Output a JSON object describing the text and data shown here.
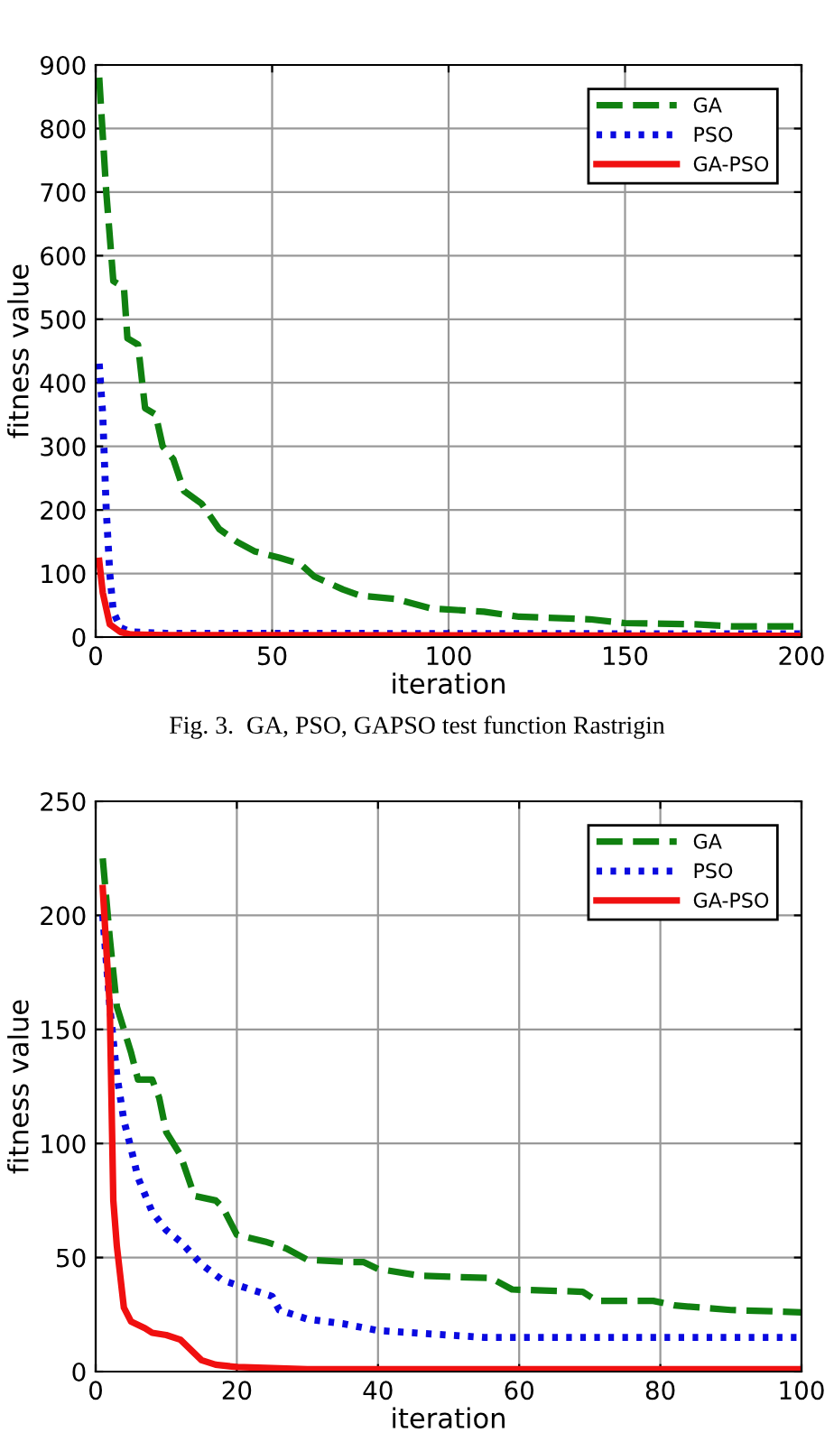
{
  "chart_data": [
    {
      "type": "line",
      "xlabel": "iteration",
      "ylabel": "fitness value",
      "xlim": [
        0,
        200
      ],
      "ylim": [
        0,
        900
      ],
      "xticks": [
        0,
        50,
        100,
        150,
        200
      ],
      "yticks": [
        0,
        100,
        200,
        300,
        400,
        500,
        600,
        700,
        800,
        900
      ],
      "grid": true,
      "legend": "top right",
      "annotations": [
        "Fig. 3.  GA, PSO, GAPSO test function Rastrigin"
      ],
      "series": [
        {
          "name": "GA",
          "color": "#108010",
          "line_style": "dashed",
          "x": [
            1,
            3,
            5,
            8,
            9,
            12,
            14,
            17,
            19,
            22,
            25,
            30,
            35,
            40,
            45,
            52,
            58,
            62,
            70,
            75,
            85,
            95,
            110,
            120,
            140,
            150,
            170,
            180,
            200
          ],
          "values": [
            880,
            700,
            560,
            550,
            470,
            460,
            360,
            350,
            300,
            280,
            230,
            210,
            170,
            150,
            135,
            125,
            115,
            95,
            75,
            65,
            60,
            45,
            40,
            32,
            28,
            22,
            20,
            17,
            17
          ]
        },
        {
          "name": "PSO",
          "color": "#0a0ae0",
          "line_style": "dotted",
          "x": [
            1,
            2,
            3,
            4,
            5,
            7,
            10,
            20,
            200
          ],
          "values": [
            430,
            350,
            200,
            100,
            40,
            15,
            8,
            6,
            5
          ]
        },
        {
          "name": "GA-PSO",
          "color": "#f01010",
          "line_style": "solid",
          "x": [
            1,
            2,
            4,
            7,
            10,
            20,
            200
          ],
          "values": [
            120,
            70,
            20,
            8,
            4,
            3,
            2
          ]
        }
      ]
    },
    {
      "type": "line",
      "xlabel": "iteration",
      "ylabel": "fitness value",
      "xlim": [
        0,
        100
      ],
      "ylim": [
        0,
        250
      ],
      "xticks": [
        0,
        20,
        40,
        60,
        80,
        100
      ],
      "yticks": [
        0,
        50,
        100,
        150,
        200,
        250
      ],
      "grid": true,
      "legend": "top right",
      "series": [
        {
          "name": "GA",
          "color": "#108010",
          "line_style": "dashed",
          "x": [
            1,
            2,
            3,
            5,
            6,
            8,
            9,
            10,
            12,
            14,
            17,
            18,
            20,
            24,
            27,
            30,
            36,
            38,
            40,
            46,
            56,
            59,
            69,
            71,
            79,
            82,
            90,
            100
          ],
          "values": [
            225,
            190,
            160,
            140,
            128,
            128,
            120,
            105,
            95,
            77,
            75,
            72,
            60,
            57,
            54,
            49,
            48,
            48,
            45,
            42,
            41,
            36,
            35,
            31,
            31,
            29,
            27,
            26
          ]
        },
        {
          "name": "PSO",
          "color": "#0a0ae0",
          "line_style": "dotted",
          "x": [
            1,
            2,
            3,
            4,
            5,
            6,
            8,
            10,
            12,
            15,
            18,
            22,
            25,
            26,
            30,
            35,
            40,
            50,
            55,
            100
          ],
          "values": [
            200,
            160,
            130,
            110,
            98,
            85,
            70,
            62,
            57,
            47,
            40,
            36,
            33,
            27,
            23,
            21,
            18,
            16,
            15,
            15
          ]
        },
        {
          "name": "GA-PSO",
          "color": "#f01010",
          "line_style": "solid",
          "x": [
            1,
            2,
            2.5,
            3,
            4,
            5,
            7,
            8,
            10,
            12,
            15,
            17,
            20,
            30,
            100
          ],
          "values": [
            212,
            160,
            75,
            55,
            28,
            22,
            19,
            17,
            16,
            14,
            5,
            3,
            2,
            1,
            1
          ]
        }
      ]
    }
  ]
}
